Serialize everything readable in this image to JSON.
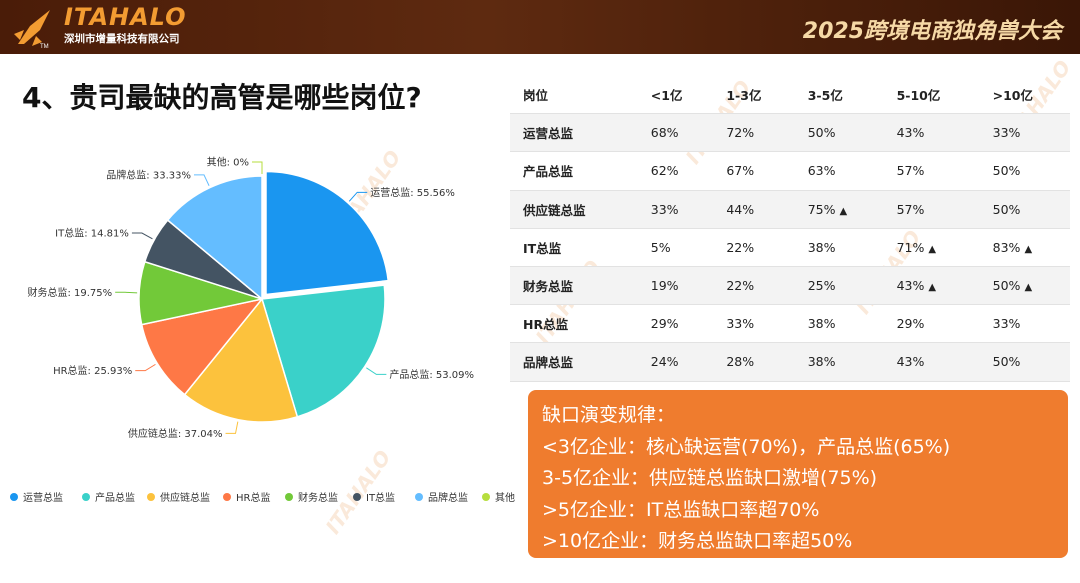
{
  "header": {
    "brand": "ITAHALO",
    "company": "深圳市增量科技有限公司",
    "tm": "TM",
    "event_title": "2025跨境电商独角兽大会",
    "colors": {
      "bar": "#4a1c08",
      "brand": "#f39c32",
      "event": "#f6d9a6"
    }
  },
  "watermark": "ITAHALO",
  "question_title": "4、贵司最缺的高管是哪些岗位?",
  "chart_data": {
    "type": "pie",
    "slices": [
      {
        "label": "运营总监",
        "value": 55.56,
        "display": "运营总监: 55.56%",
        "color": "#1a96f0"
      },
      {
        "label": "产品总监",
        "value": 53.09,
        "display": "产品总监: 53.09%",
        "color": "#3ad1c9"
      },
      {
        "label": "供应链总监",
        "value": 37.04,
        "display": "供应链总监: 37.04%",
        "color": "#fcc23d"
      },
      {
        "label": "HR总监",
        "value": 25.93,
        "display": "HR总监: 25.93%",
        "color": "#fe7846"
      },
      {
        "label": "财务总监",
        "value": 19.75,
        "display": "财务总监: 19.75%",
        "color": "#72c939"
      },
      {
        "label": "IT总监",
        "value": 14.81,
        "display": "IT总监: 14.81%",
        "color": "#445463"
      },
      {
        "label": "品牌总监",
        "value": 33.33,
        "display": "品牌总监: 33.33%",
        "color": "#64bdff"
      },
      {
        "label": "其他",
        "value": 0,
        "display": "其他: 0%",
        "color": "#b6de3e"
      }
    ],
    "highlight": "运营总监",
    "legend_position": "bottom"
  },
  "table": {
    "headers": [
      "岗位",
      "<1亿",
      "1-3亿",
      "3-5亿",
      "5-10亿",
      ">10亿"
    ],
    "marker": "▲",
    "rows": [
      {
        "name": "运营总监",
        "cells": [
          {
            "v": "68%",
            "up": false
          },
          {
            "v": "72%",
            "up": false
          },
          {
            "v": "50%",
            "up": false
          },
          {
            "v": "43%",
            "up": false
          },
          {
            "v": "33%",
            "up": false
          }
        ]
      },
      {
        "name": "产品总监",
        "cells": [
          {
            "v": "62%",
            "up": false
          },
          {
            "v": "67%",
            "up": false
          },
          {
            "v": "63%",
            "up": false
          },
          {
            "v": "57%",
            "up": false
          },
          {
            "v": "50%",
            "up": false
          }
        ]
      },
      {
        "name": "供应链总监",
        "cells": [
          {
            "v": "33%",
            "up": false
          },
          {
            "v": "44%",
            "up": false
          },
          {
            "v": "75%",
            "up": true
          },
          {
            "v": "57%",
            "up": false
          },
          {
            "v": "50%",
            "up": false
          }
        ]
      },
      {
        "name": "IT总监",
        "cells": [
          {
            "v": "5%",
            "up": false
          },
          {
            "v": "22%",
            "up": false
          },
          {
            "v": "38%",
            "up": false
          },
          {
            "v": "71%",
            "up": true
          },
          {
            "v": "83%",
            "up": true
          }
        ]
      },
      {
        "name": "财务总监",
        "cells": [
          {
            "v": "19%",
            "up": false
          },
          {
            "v": "22%",
            "up": false
          },
          {
            "v": "25%",
            "up": false
          },
          {
            "v": "43%",
            "up": true
          },
          {
            "v": "50%",
            "up": true
          }
        ]
      },
      {
        "name": "HR总监",
        "cells": [
          {
            "v": "29%",
            "up": false
          },
          {
            "v": "33%",
            "up": false
          },
          {
            "v": "38%",
            "up": false
          },
          {
            "v": "29%",
            "up": false
          },
          {
            "v": "33%",
            "up": false
          }
        ]
      },
      {
        "name": "品牌总监",
        "cells": [
          {
            "v": "24%",
            "up": false
          },
          {
            "v": "28%",
            "up": false
          },
          {
            "v": "38%",
            "up": false
          },
          {
            "v": "43%",
            "up": false
          },
          {
            "v": "50%",
            "up": false
          }
        ]
      }
    ]
  },
  "summary": {
    "color": "#ef7c2e",
    "lines": [
      "缺口演变规律：",
      "<3亿企业：核心缺运营(70%)，产品总监(65%)",
      "3-5亿企业：供应链总监缺口激增(75%)",
      ">5亿企业：IT总监缺口率超70%",
      ">10亿企业：财务总监缺口率超50%"
    ]
  }
}
